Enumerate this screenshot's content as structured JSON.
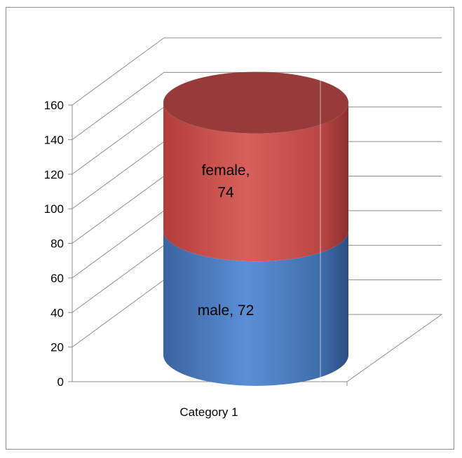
{
  "chart_data": {
    "type": "bar",
    "subtype": "3d-stacked-cylinder",
    "categories": [
      "Category 1"
    ],
    "series": [
      {
        "name": "male",
        "values": [
          72
        ],
        "color": "#4f81bd"
      },
      {
        "name": "female",
        "values": [
          74
        ],
        "color": "#c0504d"
      }
    ],
    "data_labels": [
      "male, 72",
      "female, 74"
    ],
    "ylim": [
      0,
      160
    ],
    "yticks": [
      "0",
      "20",
      "40",
      "60",
      "80",
      "100",
      "120",
      "140",
      "160"
    ],
    "grid": true,
    "legend": "none"
  }
}
